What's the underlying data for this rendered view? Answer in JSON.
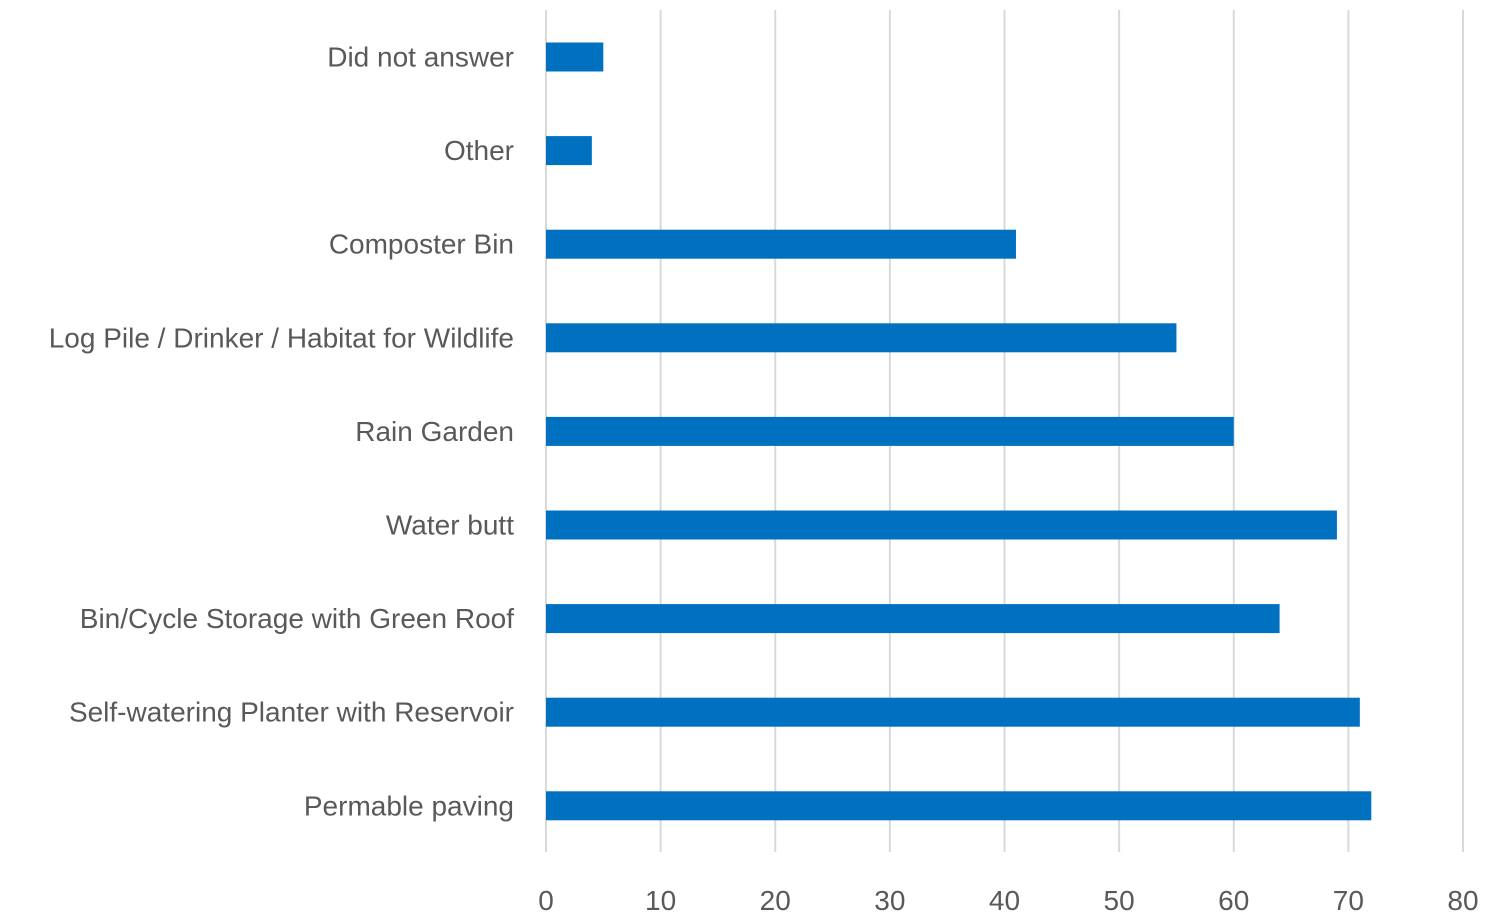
{
  "chart_data": {
    "type": "bar",
    "orientation": "horizontal",
    "title": "",
    "xlabel": "",
    "ylabel": "",
    "categories": [
      "Did not answer",
      "Other",
      "Composter Bin",
      "Log Pile / Drinker / Habitat for Wildlife",
      "Rain Garden",
      "Water butt",
      "Bin/Cycle Storage with Green Roof",
      "Self-watering Planter with Reservoir",
      "Permable paving"
    ],
    "values": [
      5,
      4,
      41,
      55,
      60,
      69,
      64,
      71,
      72
    ],
    "xlim": [
      0,
      80
    ],
    "xticks": [
      0,
      10,
      20,
      30,
      40,
      50,
      60,
      70,
      80
    ],
    "grid": true,
    "legend": "none",
    "bar_color": "#0070C0"
  }
}
